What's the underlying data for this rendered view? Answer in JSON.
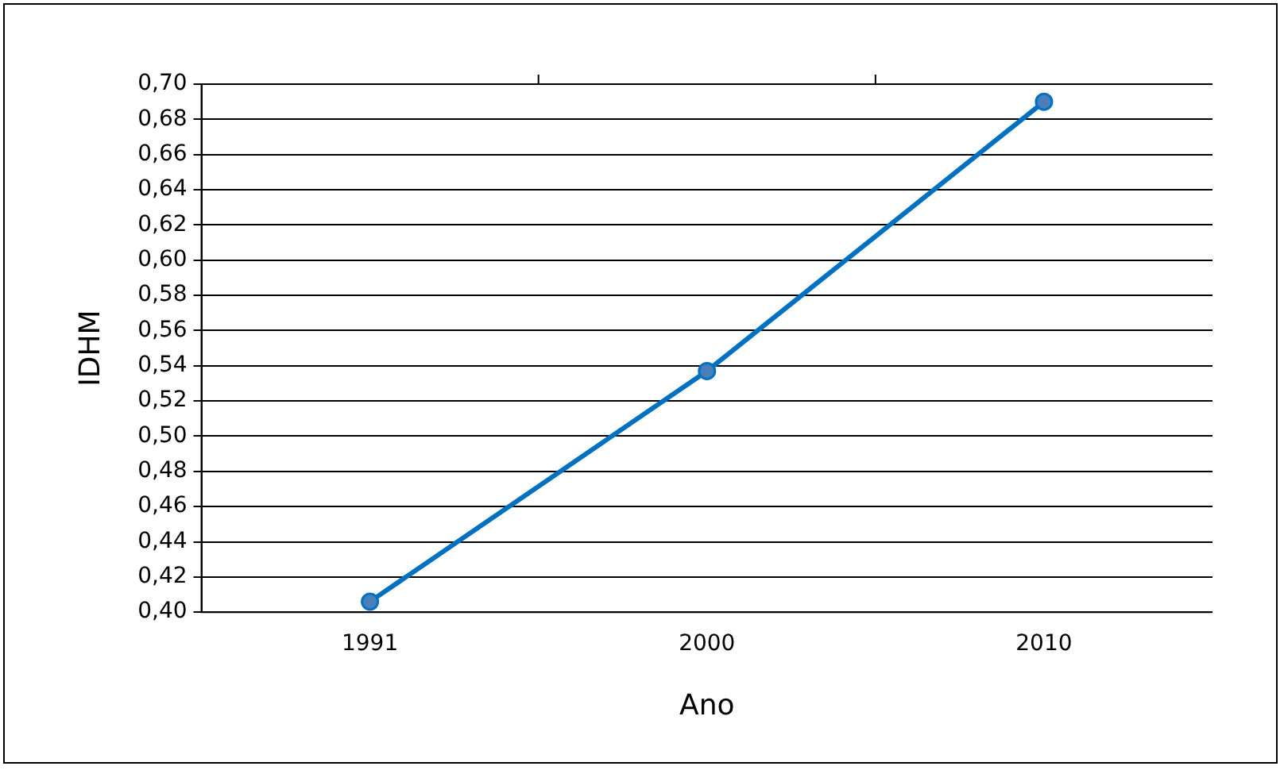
{
  "chart_data": {
    "type": "line",
    "xlabel": "Ano",
    "ylabel": "IDHM",
    "categories": [
      "1991",
      "2000",
      "2010"
    ],
    "series": [
      {
        "color": "#0070c0",
        "values": [
          0.406,
          0.537,
          0.69
        ]
      }
    ],
    "ylim": [
      0.4,
      0.7
    ],
    "yticks": [
      {
        "value": 0.4,
        "label": "0,40"
      },
      {
        "value": 0.42,
        "label": "0,42"
      },
      {
        "value": 0.44,
        "label": "0,44"
      },
      {
        "value": 0.46,
        "label": "0,46"
      },
      {
        "value": 0.48,
        "label": "0,48"
      },
      {
        "value": 0.5,
        "label": "0,50"
      },
      {
        "value": 0.52,
        "label": "0,52"
      },
      {
        "value": 0.54,
        "label": "0,54"
      },
      {
        "value": 0.56,
        "label": "0,56"
      },
      {
        "value": 0.58,
        "label": "0,58"
      },
      {
        "value": 0.6,
        "label": "0,60"
      },
      {
        "value": 0.62,
        "label": "0,62"
      },
      {
        "value": 0.64,
        "label": "0,64"
      },
      {
        "value": 0.66,
        "label": "0,66"
      },
      {
        "value": 0.68,
        "label": "0,68"
      },
      {
        "value": 0.7,
        "label": "0,70"
      }
    ],
    "grid": "y",
    "legend": false,
    "marker": "circle",
    "line_style": "solid"
  }
}
